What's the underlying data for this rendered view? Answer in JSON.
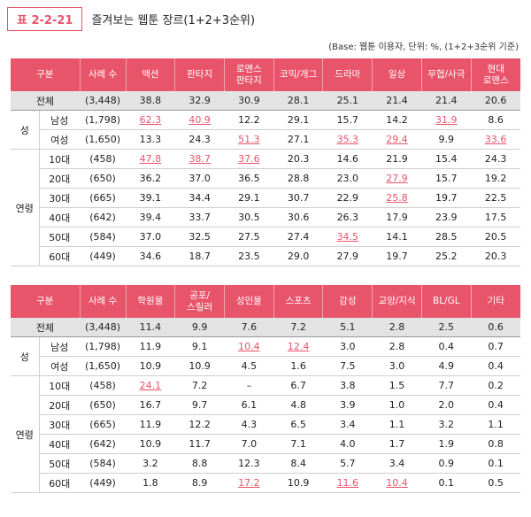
{
  "title": {
    "label": "표 2-2-21",
    "text": "즐겨보는 웹툰 장르(1+2+3순위)"
  },
  "base_note": "(Base: 웹툰 이용자, 단위: %, (1+2+3순위 기준)",
  "tables": [
    {
      "headers": [
        "구분",
        "사례 수",
        "액션",
        "판타지",
        "로맨스\n판타지",
        "코믹/개그",
        "드라마",
        "일상",
        "무협/사극",
        "현대\n로맨스"
      ],
      "rows": [
        {
          "group": "",
          "label": "전체",
          "n": "(3,448)",
          "values": [
            "38.8",
            "32.9",
            "30.9",
            "28.1",
            "25.1",
            "21.4",
            "21.4",
            "20.6"
          ],
          "hl": []
        },
        {
          "group": "성",
          "label": "남성",
          "n": "(1,798)",
          "values": [
            "62.3",
            "40.9",
            "12.2",
            "29.1",
            "15.7",
            "14.2",
            "31.9",
            "8.6"
          ],
          "hl": [
            0,
            1,
            6
          ]
        },
        {
          "group": "",
          "label": "여성",
          "n": "(1,650)",
          "values": [
            "13.3",
            "24.3",
            "51.3",
            "27.1",
            "35.3",
            "29.4",
            "9.9",
            "33.6"
          ],
          "hl": [
            2,
            4,
            5,
            7
          ]
        },
        {
          "group": "",
          "label": "10대",
          "n": "(458)",
          "values": [
            "47.8",
            "38.7",
            "37.6",
            "20.3",
            "14.6",
            "21.9",
            "15.4",
            "24.3"
          ],
          "hl": [
            0,
            1,
            2
          ]
        },
        {
          "group": "",
          "label": "20대",
          "n": "(650)",
          "values": [
            "36.2",
            "37.0",
            "36.5",
            "28.8",
            "23.0",
            "27.9",
            "15.7",
            "19.2"
          ],
          "hl": [
            5
          ]
        },
        {
          "group": "",
          "label": "30대",
          "n": "(665)",
          "values": [
            "39.1",
            "34.4",
            "29.1",
            "30.7",
            "22.9",
            "25.8",
            "19.7",
            "22.5"
          ],
          "hl": [
            5
          ]
        },
        {
          "group": "연령",
          "label": "40대",
          "n": "(642)",
          "values": [
            "39.4",
            "33.7",
            "30.5",
            "30.6",
            "26.3",
            "17.9",
            "23.9",
            "17.5"
          ],
          "hl": []
        },
        {
          "group": "",
          "label": "50대",
          "n": "(584)",
          "values": [
            "37.0",
            "32.5",
            "27.5",
            "27.4",
            "34.5",
            "14.1",
            "28.5",
            "20.5"
          ],
          "hl": [
            4
          ]
        },
        {
          "group": "",
          "label": "60대",
          "n": "(449)",
          "values": [
            "34.6",
            "18.7",
            "23.5",
            "29.0",
            "27.9",
            "19.7",
            "25.2",
            "20.3"
          ],
          "hl": []
        }
      ]
    },
    {
      "headers": [
        "구분",
        "사례 수",
        "학원물",
        "공포/\n스릴러",
        "성인물",
        "스포츠",
        "감성",
        "교양/지식",
        "BL/GL",
        "기타"
      ],
      "rows": [
        {
          "group": "",
          "label": "전체",
          "n": "(3,448)",
          "values": [
            "11.4",
            "9.9",
            "7.6",
            "7.2",
            "5.1",
            "2.8",
            "2.5",
            "0.6"
          ],
          "hl": []
        },
        {
          "group": "성",
          "label": "남성",
          "n": "(1,798)",
          "values": [
            "11.9",
            "9.1",
            "10.4",
            "12.4",
            "3.0",
            "2.8",
            "0.4",
            "0.7"
          ],
          "hl": [
            2,
            3
          ]
        },
        {
          "group": "",
          "label": "여성",
          "n": "(1,650)",
          "values": [
            "10.9",
            "10.9",
            "4.5",
            "1.6",
            "7.5",
            "3.0",
            "4.9",
            "0.4"
          ],
          "hl": []
        },
        {
          "group": "",
          "label": "10대",
          "n": "(458)",
          "values": [
            "24.1",
            "7.2",
            "–",
            "6.7",
            "3.8",
            "1.5",
            "7.7",
            "0.2"
          ],
          "hl": [
            0
          ]
        },
        {
          "group": "",
          "label": "20대",
          "n": "(650)",
          "values": [
            "16.7",
            "9.7",
            "6.1",
            "4.8",
            "3.9",
            "1.0",
            "2.0",
            "0.4"
          ],
          "hl": []
        },
        {
          "group": "",
          "label": "30대",
          "n": "(665)",
          "values": [
            "11.9",
            "12.2",
            "4.3",
            "6.5",
            "3.4",
            "1.1",
            "3.2",
            "1.1"
          ],
          "hl": []
        },
        {
          "group": "연령",
          "label": "40대",
          "n": "(642)",
          "values": [
            "10.9",
            "11.7",
            "7.0",
            "7.1",
            "4.0",
            "1.7",
            "1.9",
            "0.8"
          ],
          "hl": []
        },
        {
          "group": "",
          "label": "50대",
          "n": "(584)",
          "values": [
            "3.2",
            "8.8",
            "12.3",
            "8.4",
            "5.7",
            "3.4",
            "0.9",
            "0.1"
          ],
          "hl": []
        },
        {
          "group": "",
          "label": "60대",
          "n": "(449)",
          "values": [
            "1.8",
            "8.9",
            "17.2",
            "10.9",
            "11.6",
            "10.4",
            "0.1",
            "0.5"
          ],
          "hl": [
            2,
            4,
            5
          ]
        }
      ]
    }
  ],
  "colors": {
    "accent": "#e8546a",
    "total_row_bg": "#e3e3e3"
  }
}
